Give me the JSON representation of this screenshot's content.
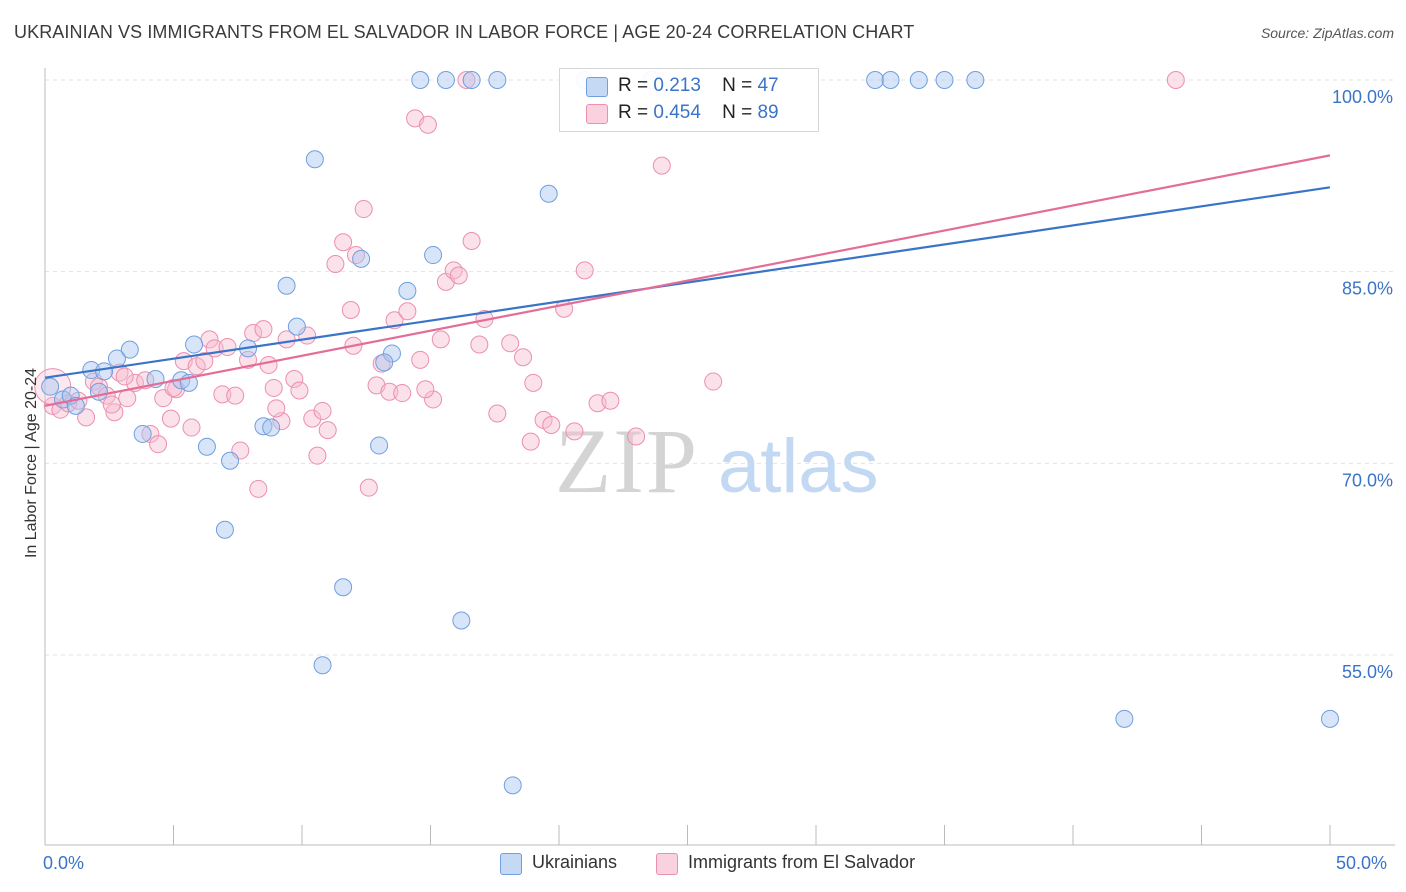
{
  "title": "UKRAINIAN VS IMMIGRANTS FROM EL SALVADOR IN LABOR FORCE | AGE 20-24 CORRELATION CHART",
  "source": "Source: ZipAtlas.com",
  "watermark": "ZIPatlas",
  "legend": {
    "r_label": "R =",
    "n_label": "N =",
    "rows": [
      {
        "r": "0.213",
        "n": "47",
        "color": "#a9c6ef"
      },
      {
        "r": "0.454",
        "n": "89",
        "color": "#f7bdd0"
      }
    ]
  },
  "bottom_legend": [
    {
      "label": "Ukrainians",
      "color": "#a9c6ef"
    },
    {
      "label": "Immigrants from El Salvador",
      "color": "#f7bdd0"
    }
  ],
  "colors": {
    "blue_fill": "#a9c6ef",
    "blue_stroke": "#6f9fe0",
    "blue_line": "#3a74c8",
    "pink_fill": "#f7bdd0",
    "pink_stroke": "#ec8fb0",
    "pink_line": "#e46d98",
    "axis_text": "#3a74c8",
    "grid": "#e3e3e3"
  },
  "chart_data": {
    "type": "scatter",
    "title": "UKRAINIAN VS IMMIGRANTS FROM EL SALVADOR IN LABOR FORCE | AGE 20-24 CORRELATION CHART",
    "xlabel": "",
    "ylabel": "In Labor Force | Age 20-24",
    "xlim": [
      0,
      50
    ],
    "ylim": [
      40,
      101.5
    ],
    "x_tick_labels": [
      "0.0%",
      "50.0%"
    ],
    "y_ticks": [
      55,
      70,
      85,
      100
    ],
    "y_tick_labels": [
      "55.0%",
      "70.0%",
      "85.0%",
      "100.0%"
    ],
    "grid": true,
    "legend_position": "top-center",
    "series": [
      {
        "name": "Ukrainians",
        "r": 0.213,
        "n": 47,
        "trend": {
          "x": [
            0,
            50
          ],
          "y": [
            76.7,
            91.6
          ]
        },
        "points": [
          [
            0.2,
            76.0
          ],
          [
            0.7,
            75.0
          ],
          [
            1.0,
            75.3
          ],
          [
            1.8,
            77.3
          ],
          [
            2.3,
            77.2
          ],
          [
            2.8,
            78.2
          ],
          [
            3.3,
            78.9
          ],
          [
            3.8,
            72.3
          ],
          [
            4.3,
            76.6
          ],
          [
            5.3,
            76.5
          ],
          [
            5.8,
            79.3
          ],
          [
            6.3,
            71.3
          ],
          [
            7.0,
            64.8
          ],
          [
            7.2,
            70.2
          ],
          [
            7.9,
            79.0
          ],
          [
            8.5,
            72.9
          ],
          [
            8.8,
            72.8
          ],
          [
            9.4,
            83.9
          ],
          [
            9.8,
            80.7
          ],
          [
            10.5,
            93.8
          ],
          [
            10.8,
            54.2
          ],
          [
            11.6,
            60.3
          ],
          [
            12.3,
            86.0
          ],
          [
            13.0,
            71.4
          ],
          [
            13.5,
            78.6
          ],
          [
            14.1,
            83.5
          ],
          [
            15.1,
            86.3
          ],
          [
            14.6,
            100.0
          ],
          [
            15.6,
            100.0
          ],
          [
            16.6,
            100.0
          ],
          [
            16.2,
            57.7
          ],
          [
            17.6,
            100.0
          ],
          [
            18.2,
            44.8
          ],
          [
            19.6,
            91.1
          ],
          [
            21.0,
            100.0
          ],
          [
            23.6,
            100.0
          ],
          [
            32.3,
            100.0
          ],
          [
            32.9,
            100.0
          ],
          [
            34.0,
            100.0
          ],
          [
            35.0,
            100.0
          ],
          [
            36.2,
            100.0
          ],
          [
            42.0,
            50.0
          ],
          [
            50.0,
            50.0
          ],
          [
            5.6,
            76.3
          ],
          [
            2.1,
            75.6
          ],
          [
            1.2,
            74.5
          ],
          [
            13.2,
            77.9
          ]
        ]
      },
      {
        "name": "Immigrants from El Salvador",
        "r": 0.454,
        "n": 89,
        "trend": {
          "x": [
            0,
            50
          ],
          "y": [
            74.5,
            94.1
          ]
        },
        "points": [
          [
            0.3,
            74.5
          ],
          [
            0.6,
            74.2
          ],
          [
            0.9,
            74.7
          ],
          [
            1.3,
            74.9
          ],
          [
            1.6,
            73.6
          ],
          [
            1.9,
            76.4
          ],
          [
            2.1,
            76.0
          ],
          [
            2.4,
            75.3
          ],
          [
            2.7,
            74.0
          ],
          [
            2.9,
            77.1
          ],
          [
            3.2,
            75.1
          ],
          [
            3.5,
            76.3
          ],
          [
            3.9,
            76.5
          ],
          [
            4.1,
            72.3
          ],
          [
            4.4,
            71.5
          ],
          [
            4.6,
            75.1
          ],
          [
            4.9,
            73.5
          ],
          [
            5.1,
            75.8
          ],
          [
            5.4,
            78.0
          ],
          [
            5.7,
            72.8
          ],
          [
            5.9,
            77.6
          ],
          [
            6.2,
            78.0
          ],
          [
            6.4,
            79.7
          ],
          [
            6.6,
            79.0
          ],
          [
            6.9,
            75.4
          ],
          [
            7.1,
            79.1
          ],
          [
            7.4,
            75.3
          ],
          [
            7.6,
            71.0
          ],
          [
            7.9,
            78.1
          ],
          [
            8.1,
            80.2
          ],
          [
            8.3,
            68.0
          ],
          [
            8.5,
            80.5
          ],
          [
            8.7,
            77.7
          ],
          [
            8.9,
            75.9
          ],
          [
            9.2,
            73.3
          ],
          [
            9.4,
            79.7
          ],
          [
            9.7,
            76.6
          ],
          [
            9.9,
            75.7
          ],
          [
            10.2,
            80.0
          ],
          [
            10.4,
            73.5
          ],
          [
            10.6,
            70.6
          ],
          [
            10.8,
            74.1
          ],
          [
            11.0,
            72.6
          ],
          [
            11.3,
            85.6
          ],
          [
            11.6,
            87.3
          ],
          [
            11.9,
            82.0
          ],
          [
            12.1,
            86.3
          ],
          [
            12.4,
            89.9
          ],
          [
            12.6,
            68.1
          ],
          [
            12.9,
            76.1
          ],
          [
            13.1,
            77.8
          ],
          [
            13.4,
            75.6
          ],
          [
            13.6,
            81.2
          ],
          [
            13.9,
            75.5
          ],
          [
            14.1,
            81.9
          ],
          [
            14.4,
            97.0
          ],
          [
            14.6,
            78.1
          ],
          [
            14.9,
            96.5
          ],
          [
            15.1,
            75.0
          ],
          [
            15.4,
            79.7
          ],
          [
            15.6,
            84.2
          ],
          [
            15.9,
            85.1
          ],
          [
            16.1,
            84.7
          ],
          [
            16.4,
            100.0
          ],
          [
            16.6,
            87.4
          ],
          [
            16.9,
            79.3
          ],
          [
            17.1,
            81.3
          ],
          [
            17.6,
            73.9
          ],
          [
            18.1,
            79.4
          ],
          [
            18.6,
            78.3
          ],
          [
            19.0,
            76.3
          ],
          [
            19.4,
            73.4
          ],
          [
            19.7,
            73.0
          ],
          [
            20.2,
            82.1
          ],
          [
            20.6,
            72.5
          ],
          [
            21.0,
            85.1
          ],
          [
            21.5,
            74.7
          ],
          [
            22.0,
            74.9
          ],
          [
            23.0,
            72.1
          ],
          [
            24.0,
            93.3
          ],
          [
            26.0,
            76.4
          ],
          [
            44.0,
            100.0
          ],
          [
            2.6,
            74.6
          ],
          [
            5.0,
            75.9
          ],
          [
            9.0,
            74.3
          ],
          [
            12.0,
            79.2
          ],
          [
            14.8,
            75.8
          ],
          [
            3.1,
            76.8
          ],
          [
            18.9,
            71.7
          ]
        ]
      }
    ]
  }
}
